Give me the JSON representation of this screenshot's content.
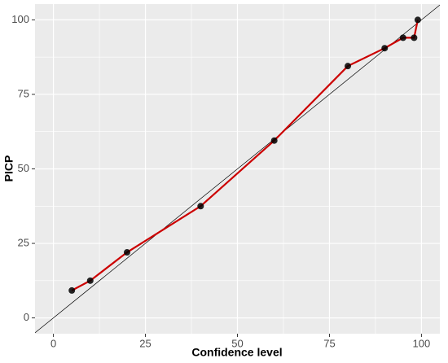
{
  "chart_data": {
    "type": "line",
    "x_label": "Confidence level",
    "y_label": "PICP",
    "x": [
      5,
      10,
      20,
      40,
      60,
      80,
      90,
      95,
      98,
      99
    ],
    "series": [
      {
        "color": "#cc0000",
        "point_color": "#000000",
        "values": [
          9.2,
          12.5,
          22,
          37.5,
          59.5,
          84.5,
          90.5,
          94,
          94,
          100
        ]
      }
    ],
    "xlim": [
      -5,
      105
    ],
    "xticks": [
      0,
      25,
      50,
      75,
      100
    ],
    "ylim": [
      -5.3,
      105.3
    ],
    "yticks": [
      0,
      25,
      50,
      75,
      100
    ],
    "grid": true
  }
}
